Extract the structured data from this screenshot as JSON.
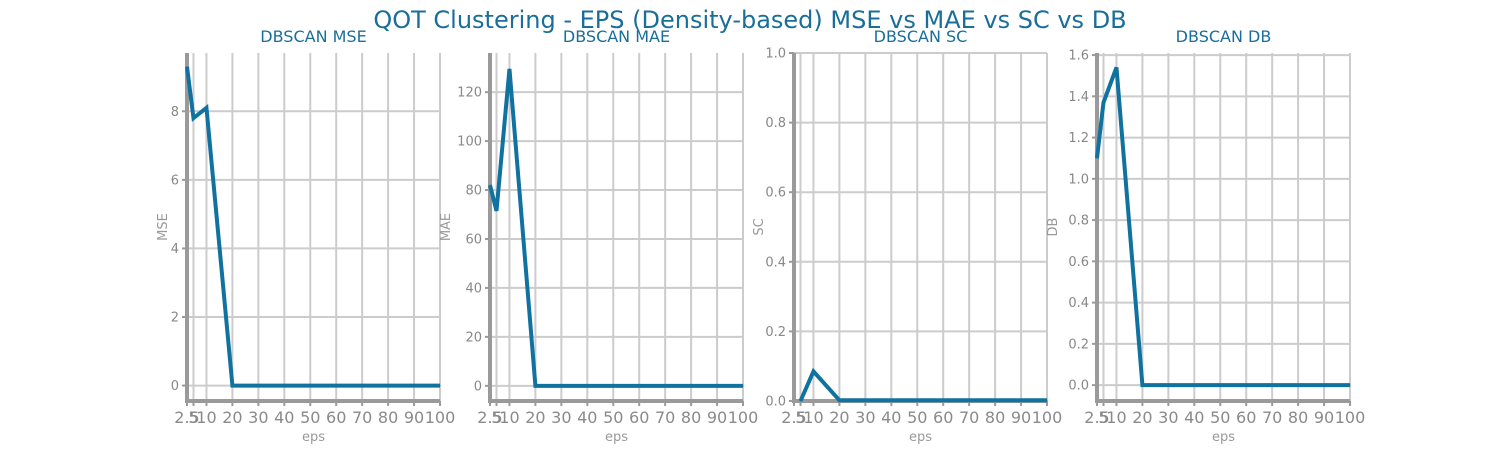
{
  "figure": {
    "title": "QOT Clustering - EPS (Density-based) MSE vs MAE vs SC vs DB",
    "colors": {
      "title": "#1a6e9a",
      "line": "#10729f",
      "grid": "#cccccc",
      "axis": "#9a9a9a",
      "tick_text": "#888888",
      "label_text": "#999999"
    }
  },
  "chart_data": [
    {
      "type": "line",
      "title": "DBSCAN MSE",
      "xlabel": "eps",
      "ylabel": "MSE",
      "grid": true,
      "x": [
        2.5,
        5,
        10,
        20,
        30,
        40,
        50,
        60,
        70,
        80,
        90,
        100
      ],
      "x_tick_labels": [
        "2.5",
        "5",
        "10",
        "20",
        "30",
        "40",
        "50",
        "60",
        "70",
        "80",
        "90",
        "100"
      ],
      "xlim": [
        2.5,
        100
      ],
      "series": [
        {
          "values": [
            9.3,
            7.8,
            8.1,
            0,
            0,
            0,
            0,
            0,
            0,
            0,
            0,
            0
          ]
        }
      ],
      "ylim": [
        -0.45,
        9.7
      ],
      "yticks": [
        0,
        2,
        4,
        6,
        8
      ],
      "y_tick_labels": [
        "0",
        "2",
        "4",
        "6",
        "8"
      ]
    },
    {
      "type": "line",
      "title": "DBSCAN MAE",
      "xlabel": "eps",
      "ylabel": "MAE",
      "grid": true,
      "x": [
        2.5,
        5,
        10,
        20,
        30,
        40,
        50,
        60,
        70,
        80,
        90,
        100
      ],
      "x_tick_labels": [
        "2.5",
        "5",
        "10",
        "20",
        "30",
        "40",
        "50",
        "60",
        "70",
        "80",
        "90",
        "100"
      ],
      "xlim": [
        2.5,
        100
      ],
      "series": [
        {
          "values": [
            82,
            71.5,
            129.5,
            0,
            0,
            0,
            0,
            0,
            0,
            0,
            0,
            0
          ]
        }
      ],
      "ylim": [
        -6.2,
        136
      ],
      "yticks": [
        0,
        20,
        40,
        60,
        80,
        100,
        120
      ],
      "y_tick_labels": [
        "0",
        "20",
        "40",
        "60",
        "80",
        "100",
        "120"
      ]
    },
    {
      "type": "line",
      "title": "DBSCAN SC",
      "xlabel": "eps",
      "ylabel": "SC",
      "grid": true,
      "x": [
        2.5,
        5,
        10,
        20,
        30,
        40,
        50,
        60,
        70,
        80,
        90,
        100
      ],
      "x_tick_labels": [
        "2.5",
        "5",
        "10",
        "20",
        "30",
        "40",
        "50",
        "60",
        "70",
        "80",
        "90",
        "100"
      ],
      "xlim": [
        2.5,
        100
      ],
      "series": [
        {
          "values": [
            null,
            0,
            0.085,
            0.002,
            0.002,
            0.002,
            0.002,
            0.002,
            0.002,
            0.002,
            0.002,
            0.002
          ]
        }
      ],
      "ylim": [
        0,
        1.0
      ],
      "yticks": [
        0,
        0.2,
        0.4,
        0.6,
        0.8,
        1.0
      ],
      "y_tick_labels": [
        "0.0",
        "0.2",
        "0.4",
        "0.6",
        "0.8",
        "1.0"
      ]
    },
    {
      "type": "line",
      "title": "DBSCAN DB",
      "xlabel": "eps",
      "ylabel": "DB",
      "grid": true,
      "x": [
        2.5,
        5,
        10,
        20,
        30,
        40,
        50,
        60,
        70,
        80,
        90,
        100
      ],
      "x_tick_labels": [
        "2.5",
        "5",
        "10",
        "20",
        "30",
        "40",
        "50",
        "60",
        "70",
        "80",
        "90",
        "100"
      ],
      "xlim": [
        2.5,
        100
      ],
      "series": [
        {
          "values": [
            1.1,
            1.37,
            1.54,
            0,
            0,
            0,
            0,
            0,
            0,
            0,
            0,
            0
          ]
        }
      ],
      "ylim": [
        -0.077,
        1.61
      ],
      "yticks": [
        0,
        0.2,
        0.4,
        0.6,
        0.8,
        1.0,
        1.2,
        1.4,
        1.6
      ],
      "y_tick_labels": [
        "0.0",
        "0.2",
        "0.4",
        "0.6",
        "0.8",
        "1.0",
        "1.2",
        "1.4",
        "1.6"
      ]
    }
  ]
}
